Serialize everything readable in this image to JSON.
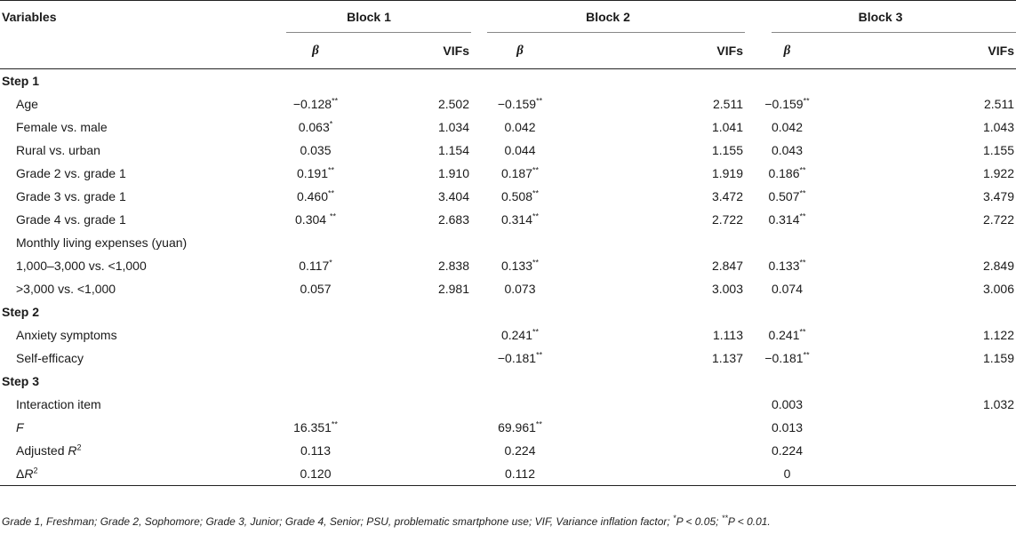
{
  "header": {
    "variables": "Variables",
    "blocks": [
      "Block 1",
      "Block 2",
      "Block 3"
    ],
    "beta": "β",
    "vifs": "VIFs"
  },
  "rows": [
    {
      "type": "step",
      "label": "Step 1"
    },
    {
      "type": "data",
      "label": "Age",
      "b1": "−0.128",
      "b1s": "**",
      "v1": "2.502",
      "b2": "−0.159",
      "b2s": "**",
      "v2": "2.511",
      "b3": "−0.159",
      "b3s": "**",
      "v3": "2.511"
    },
    {
      "type": "data",
      "label": "Female vs. male",
      "b1": "0.063",
      "b1s": "*",
      "v1": "1.034",
      "b2": "0.042",
      "b2s": "",
      "v2": "1.041",
      "b3": "0.042",
      "b3s": "",
      "v3": "1.043"
    },
    {
      "type": "data",
      "label": "Rural vs. urban",
      "b1": "0.035",
      "b1s": "",
      "v1": "1.154",
      "b2": "0.044",
      "b2s": "",
      "v2": "1.155",
      "b3": "0.043",
      "b3s": "",
      "v3": "1.155"
    },
    {
      "type": "data",
      "label": "Grade 2 vs. grade 1",
      "b1": "0.191",
      "b1s": "**",
      "v1": "1.910",
      "b2": "0.187",
      "b2s": "**",
      "v2": "1.919",
      "b3": "0.186",
      "b3s": "**",
      "v3": "1.922"
    },
    {
      "type": "data",
      "label": "Grade 3 vs. grade 1",
      "b1": "0.460",
      "b1s": "**",
      "v1": "3.404",
      "b2": "0.508",
      "b2s": "**",
      "v2": "3.472",
      "b3": "0.507",
      "b3s": "**",
      "v3": "3.479"
    },
    {
      "type": "data",
      "label": "Grade 4 vs. grade 1",
      "b1": "0.304 ",
      "b1s": "**",
      "v1": "2.683",
      "b2": "0.314",
      "b2s": "**",
      "v2": "2.722",
      "b3": "0.314",
      "b3s": "**",
      "v3": "2.722"
    },
    {
      "type": "data",
      "label": "Monthly living expenses (yuan)",
      "b1": "",
      "b1s": "",
      "v1": "",
      "b2": "",
      "b2s": "",
      "v2": "",
      "b3": "",
      "b3s": "",
      "v3": ""
    },
    {
      "type": "data",
      "label": "1,000–3,000 vs. <1,000",
      "b1": "0.117",
      "b1s": "*",
      "v1": "2.838",
      "b2": "0.133",
      "b2s": "**",
      "v2": "2.847",
      "b3": "0.133",
      "b3s": "**",
      "v3": "2.849"
    },
    {
      "type": "data",
      "label": ">3,000 vs. <1,000",
      "b1": "0.057",
      "b1s": "",
      "v1": "2.981",
      "b2": "0.073",
      "b2s": "",
      "v2": "3.003",
      "b3": "0.074",
      "b3s": "",
      "v3": "3.006"
    },
    {
      "type": "step",
      "label": "Step 2"
    },
    {
      "type": "data",
      "label": "Anxiety symptoms",
      "b1": "",
      "b1s": "",
      "v1": "",
      "b2": "0.241",
      "b2s": "**",
      "v2": "1.113",
      "b3": "0.241",
      "b3s": "**",
      "v3": "1.122"
    },
    {
      "type": "data",
      "label": "Self-efficacy",
      "b1": "",
      "b1s": "",
      "v1": "",
      "b2": "−0.181",
      "b2s": "**",
      "v2": "1.137",
      "b3": "−0.181",
      "b3s": "**",
      "v3": "1.159"
    },
    {
      "type": "step",
      "label": "Step 3"
    },
    {
      "type": "data",
      "label": "Interaction item",
      "b1": "",
      "b1s": "",
      "v1": "",
      "b2": "",
      "b2s": "",
      "v2": "",
      "b3": "0.003",
      "b3s": "",
      "v3": "1.032"
    }
  ],
  "summary": [
    {
      "key": "F",
      "label_main": "F",
      "label_sup": "",
      "label_prefix": "",
      "italic": true,
      "b1": "16.351",
      "b1s": "**",
      "b2": "69.961",
      "b2s": "**",
      "b3": "0.013",
      "b3s": ""
    },
    {
      "key": "adjR2",
      "label_prefix": "Adjusted ",
      "label_main": "R",
      "label_sup": "2",
      "italic": true,
      "b1": "0.113",
      "b1s": "",
      "b2": "0.224",
      "b2s": "",
      "b3": "0.224",
      "b3s": ""
    },
    {
      "key": "dR2",
      "label_prefix": "Δ",
      "label_main": "R",
      "label_sup": "2",
      "italic": false,
      "b1": "0.120",
      "b1s": "",
      "b2": "0.112",
      "b2s": "",
      "b3": "0",
      "b3s": ""
    }
  ],
  "footnote": {
    "text": "Grade 1, Freshman; Grade 2, Sophomore; Grade 3, Junior; Grade 4, Senior; PSU, problematic smartphone use; VIF, Variance inflation factor; ",
    "p1_sup": "*",
    "p1_text": "P < 0.05; ",
    "p2_sup": "**",
    "p2_text": "P < 0.01."
  }
}
